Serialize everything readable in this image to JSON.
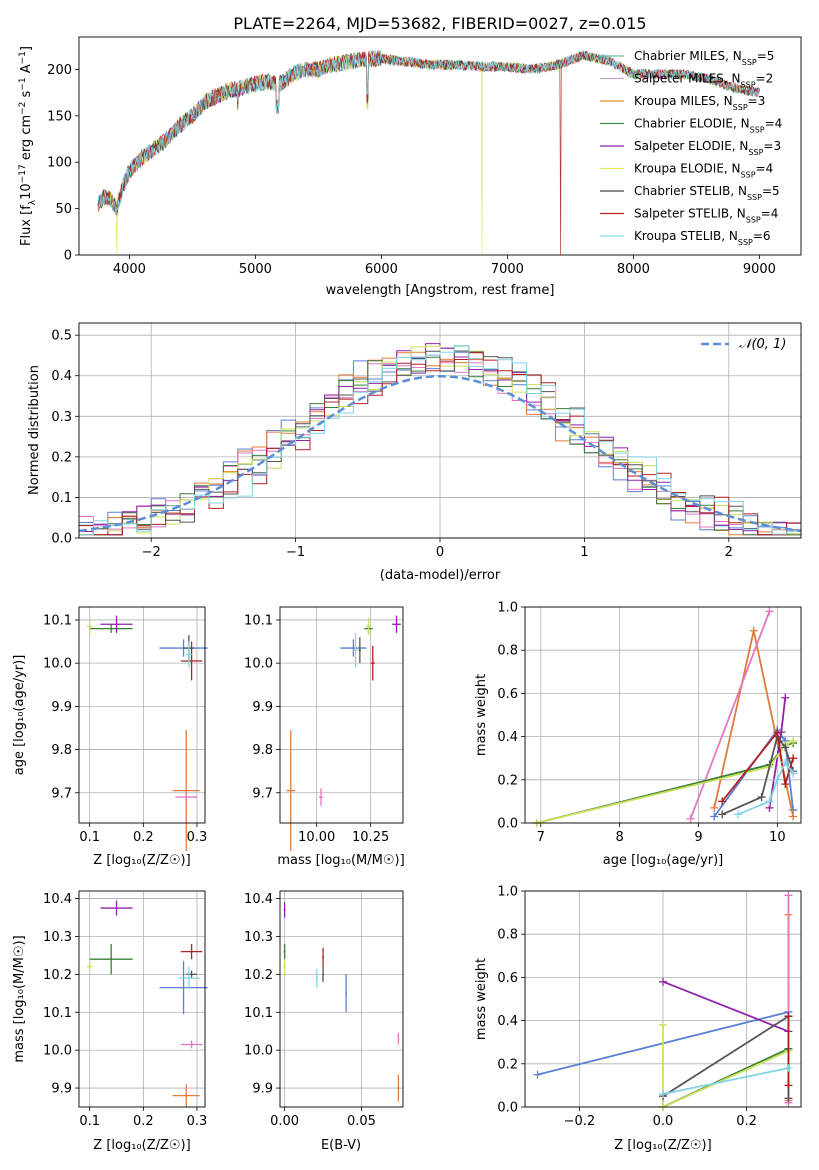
{
  "colors": {
    "series": [
      "#66c2a5",
      "#c2a5cf",
      "#e08a2c",
      "#4a8a4a",
      "#8e24aa",
      "#e6e65a",
      "#444444",
      "#b22222",
      "#80deea"
    ],
    "gauss": "#5b8fd6",
    "hist": [
      "#5b7fd6",
      "#e07b39",
      "#e377c2",
      "#3a7d3a",
      "#8e24aa",
      "#c8e05a",
      "#555555",
      "#b22222",
      "#80d4e6"
    ]
  },
  "chart_data": [
    {
      "type": "line",
      "title": "PLATE=2264, MJD=53682, FIBERID=0027, z=0.015",
      "xlabel": "wavelength [Angstrom, rest frame]",
      "ylabel": "Flux [f",
      "ylabel_parts": {
        "a": "Flux [f",
        "sub1": "λ",
        "b": "10",
        "sup1": "−17",
        "c": " erg cm",
        "sup2": "−2",
        "d": " s",
        "sup3": "−1",
        "e": " A",
        "sup4": "−1",
        "f": "]"
      },
      "xlim": [
        3600,
        9330
      ],
      "ylim": [
        0,
        235
      ],
      "xticks": [
        4000,
        5000,
        6000,
        7000,
        8000,
        9000
      ],
      "yticks": [
        0,
        50,
        100,
        150,
        200
      ],
      "legend_position": "right",
      "legend": [
        {
          "name": "Chabrier MILES, N",
          "sub": "SSP",
          "n": "=5"
        },
        {
          "name": "Salpeter MILES, N",
          "sub": "SSP",
          "n": "=2"
        },
        {
          "name": "Kroupa MILES, N",
          "sub": "SSP",
          "n": "=3"
        },
        {
          "name": "Chabrier ELODIE, N",
          "sub": "SSP",
          "n": "=4"
        },
        {
          "name": "Salpeter ELODIE, N",
          "sub": "SSP",
          "n": "=3"
        },
        {
          "name": "Kroupa ELODIE, N",
          "sub": "SSP",
          "n": "=4"
        },
        {
          "name": "Chabrier STELIB, N",
          "sub": "SSP",
          "n": "=5"
        },
        {
          "name": "Salpeter STELIB, N",
          "sub": "SSP",
          "n": "=4"
        },
        {
          "name": "Kroupa STELIB, N",
          "sub": "SSP",
          "n": "=6"
        }
      ],
      "spectrum_anchors": {
        "x": [
          3750,
          3800,
          3850,
          3900,
          3950,
          4000,
          4100,
          4200,
          4300,
          4400,
          4500,
          4600,
          4700,
          4800,
          4900,
          5000,
          5100,
          5200,
          5300,
          5400,
          5500,
          5600,
          5800,
          6000,
          6200,
          6400,
          6600,
          6800,
          7000,
          7200,
          7400,
          7600,
          7800,
          8000,
          8200,
          8400,
          8600,
          8800,
          9000
        ],
        "y": [
          55,
          62,
          60,
          50,
          75,
          90,
          105,
          115,
          125,
          140,
          150,
          165,
          172,
          178,
          180,
          185,
          187,
          185,
          195,
          200,
          200,
          205,
          210,
          212,
          208,
          205,
          205,
          203,
          203,
          200,
          205,
          215,
          210,
          195,
          195,
          195,
          190,
          180,
          175
        ]
      },
      "dips": [
        {
          "x": 3900,
          "y": 0,
          "series": 5
        },
        {
          "x": 6800,
          "y": 0,
          "series": 5
        },
        {
          "x": 7420,
          "y": 0,
          "series": 7
        }
      ]
    },
    {
      "type": "histogram",
      "xlabel": "(data-model)/error",
      "ylabel": "Normed distribution",
      "xlim": [
        -2.5,
        2.5
      ],
      "ylim": [
        0,
        0.53
      ],
      "xticks": [
        -2,
        -1,
        0,
        1,
        2
      ],
      "yticks": [
        0.0,
        0.1,
        0.2,
        0.3,
        0.4,
        0.5
      ],
      "grid": true,
      "legend": [
        {
          "name": "𝒩(0, 1)",
          "style": "dashed"
        }
      ],
      "legend_position": "top-right",
      "gauss": {
        "mu": 0,
        "sigma": 1
      },
      "bin_width": 0.1
    },
    {
      "type": "scatter",
      "xlabel": "Z [log₁₀(Z/Z☉)]",
      "ylabel": "age  [log₁₀(age/yr)]",
      "xlim": [
        0.08,
        0.315
      ],
      "ylim": [
        9.63,
        10.13
      ],
      "xticks": [
        0.1,
        0.2,
        0.3
      ],
      "yticks": [
        9.7,
        9.8,
        9.9,
        10.0,
        10.1
      ],
      "points": [
        {
          "x": 0.275,
          "y": 10.035,
          "xerr": 0.045,
          "yerr": 0.02,
          "series": 0
        },
        {
          "x": 0.28,
          "y": 9.705,
          "xerr": 0.025,
          "yerr": 0.14,
          "series": 1
        },
        {
          "x": 0.28,
          "y": 9.69,
          "xerr": 0.02,
          "yerr": 0.01,
          "series": 2
        },
        {
          "x": 0.14,
          "y": 10.08,
          "xerr": 0.04,
          "yerr": 0.01,
          "series": 3
        },
        {
          "x": 0.15,
          "y": 10.09,
          "xerr": 0.03,
          "yerr": 0.02,
          "series": 4
        },
        {
          "x": 0.1,
          "y": 10.085,
          "xerr": 0.005,
          "yerr": 0.02,
          "series": 5
        },
        {
          "x": 0.285,
          "y": 10.035,
          "xerr": 0.01,
          "yerr": 0.03,
          "series": 6
        },
        {
          "x": 0.29,
          "y": 10.005,
          "xerr": 0.02,
          "yerr": 0.045,
          "series": 7
        },
        {
          "x": 0.285,
          "y": 10.02,
          "xerr": 0.005,
          "yerr": 0.03,
          "series": 8
        }
      ]
    },
    {
      "type": "scatter",
      "xlabel": "mass [log₁₀(M/M☉)]",
      "ylabel": "",
      "xlim": [
        9.83,
        10.4
      ],
      "ylim": [
        9.63,
        10.13
      ],
      "xticks": [
        10.0,
        10.25
      ],
      "xticklabels": [
        "10.00",
        "10.25"
      ],
      "yticks": [
        9.7,
        9.8,
        9.9,
        10.0,
        10.1
      ],
      "points": [
        {
          "x": 10.17,
          "y": 10.035,
          "xerr": 0.06,
          "yerr": 0.02,
          "series": 0
        },
        {
          "x": 9.88,
          "y": 9.705,
          "xerr": 0.02,
          "yerr": 0.14,
          "series": 1
        },
        {
          "x": 10.02,
          "y": 9.69,
          "xerr": 0.01,
          "yerr": 0.02,
          "series": 2
        },
        {
          "x": 10.24,
          "y": 10.08,
          "xerr": 0.02,
          "yerr": 0.01,
          "series": 3
        },
        {
          "x": 10.37,
          "y": 10.09,
          "xerr": 0.02,
          "yerr": 0.02,
          "series": 4
        },
        {
          "x": 10.24,
          "y": 10.085,
          "xerr": 0.01,
          "yerr": 0.02,
          "series": 5
        },
        {
          "x": 10.2,
          "y": 10.03,
          "xerr": 0.005,
          "yerr": 0.03,
          "series": 6
        },
        {
          "x": 10.26,
          "y": 10.0,
          "xerr": 0.01,
          "yerr": 0.04,
          "series": 7
        },
        {
          "x": 10.18,
          "y": 10.03,
          "xerr": 0.01,
          "yerr": 0.04,
          "series": 8
        }
      ]
    },
    {
      "type": "line",
      "xlabel": "age  [log₁₀(age/yr)]",
      "ylabel": "mass weight",
      "xlim": [
        6.8,
        10.3
      ],
      "ylim": [
        0,
        1.0
      ],
      "xticks": [
        7,
        8,
        9,
        10
      ],
      "yticks": [
        0.0,
        0.2,
        0.4,
        0.6,
        0.8,
        1.0
      ],
      "grid": true,
      "series": [
        {
          "x": [
            9.2,
            10.0,
            10.1,
            10.2
          ],
          "y": [
            0.03,
            0.43,
            0.38,
            0.06
          ],
          "color": 0
        },
        {
          "x": [
            9.2,
            9.7,
            10.2
          ],
          "y": [
            0.07,
            0.89,
            0.03
          ],
          "color": 1
        },
        {
          "x": [
            8.9,
            9.9
          ],
          "y": [
            0.02,
            0.98
          ],
          "color": 2
        },
        {
          "x": [
            6.95,
            9.9,
            10.1,
            10.2
          ],
          "y": [
            0.0,
            0.27,
            0.36,
            0.37
          ],
          "color": 3
        },
        {
          "x": [
            9.9,
            10.05,
            10.1
          ],
          "y": [
            0.07,
            0.42,
            0.58
          ],
          "color": 4
        },
        {
          "x": [
            6.95,
            9.9,
            10.1,
            10.2
          ],
          "y": [
            0.0,
            0.26,
            0.36,
            0.38
          ],
          "color": 5
        },
        {
          "x": [
            9.3,
            9.8,
            10.0,
            10.1,
            10.2
          ],
          "y": [
            0.04,
            0.12,
            0.4,
            0.35,
            0.24
          ],
          "color": 6
        },
        {
          "x": [
            9.3,
            10.0,
            10.1,
            10.2
          ],
          "y": [
            0.1,
            0.42,
            0.18,
            0.3
          ],
          "color": 7
        },
        {
          "x": [
            9.5,
            9.9,
            10.0,
            10.1,
            10.2
          ],
          "y": [
            0.04,
            0.1,
            0.2,
            0.28,
            0.23
          ],
          "color": 8
        }
      ]
    },
    {
      "type": "scatter",
      "xlabel": "Z [log₁₀(Z/Z☉)]",
      "ylabel": "mass [log₁₀(M/M☉)]",
      "xlim": [
        0.08,
        0.315
      ],
      "ylim": [
        9.85,
        10.42
      ],
      "xticks": [
        0.1,
        0.2,
        0.3
      ],
      "yticks": [
        9.9,
        10.0,
        10.1,
        10.2,
        10.3,
        10.4
      ],
      "points": [
        {
          "x": 0.275,
          "y": 10.165,
          "xerr": 0.045,
          "yerr": 0.07,
          "series": 0
        },
        {
          "x": 0.28,
          "y": 9.88,
          "xerr": 0.025,
          "yerr": 0.03,
          "series": 1
        },
        {
          "x": 0.29,
          "y": 10.015,
          "xerr": 0.02,
          "yerr": 0.01,
          "series": 2
        },
        {
          "x": 0.14,
          "y": 10.24,
          "xerr": 0.04,
          "yerr": 0.04,
          "series": 3
        },
        {
          "x": 0.15,
          "y": 10.375,
          "xerr": 0.03,
          "yerr": 0.02,
          "series": 4
        },
        {
          "x": 0.1,
          "y": 10.22,
          "xerr": 0.005,
          "yerr": 0.01,
          "series": 5
        },
        {
          "x": 0.29,
          "y": 10.2,
          "xerr": 0.01,
          "yerr": 0.01,
          "series": 6
        },
        {
          "x": 0.29,
          "y": 10.26,
          "xerr": 0.02,
          "yerr": 0.02,
          "series": 7
        },
        {
          "x": 0.285,
          "y": 10.19,
          "xerr": 0.02,
          "yerr": 0.03,
          "series": 8
        }
      ]
    },
    {
      "type": "scatter",
      "xlabel": "E(B-V)",
      "ylabel": "",
      "xlim": [
        -0.003,
        0.077
      ],
      "ylim": [
        9.85,
        10.42
      ],
      "xticks": [
        0.0,
        0.05
      ],
      "xticklabels": [
        "0.00",
        "0.05"
      ],
      "yticks": [
        9.9,
        10.0,
        10.1,
        10.2,
        10.3,
        10.4
      ],
      "points": [
        {
          "x": 0.04,
          "y": 10.15,
          "xerr": 0,
          "yerr": 0.05,
          "series": 0
        },
        {
          "x": 0.074,
          "y": 9.9,
          "xerr": 0,
          "yerr": 0.035,
          "series": 1
        },
        {
          "x": 0.074,
          "y": 10.03,
          "xerr": 0,
          "yerr": 0.015,
          "series": 2
        },
        {
          "x": 0.0,
          "y": 10.26,
          "xerr": 0,
          "yerr": 0.02,
          "series": 3
        },
        {
          "x": 0.0,
          "y": 10.37,
          "xerr": 0,
          "yerr": 0.02,
          "series": 4
        },
        {
          "x": 0.0,
          "y": 10.22,
          "xerr": 0,
          "yerr": 0.02,
          "series": 5
        },
        {
          "x": 0.025,
          "y": 10.2,
          "xerr": 0,
          "yerr": 0.02,
          "series": 6
        },
        {
          "x": 0.025,
          "y": 10.245,
          "xerr": 0,
          "yerr": 0.025,
          "series": 7
        },
        {
          "x": 0.021,
          "y": 10.19,
          "xerr": 0,
          "yerr": 0.025,
          "series": 8
        }
      ]
    },
    {
      "type": "line",
      "xlabel": "Z [log₁₀(Z/Z☉)]",
      "ylabel": "mass weight",
      "xlim": [
        -0.33,
        0.33
      ],
      "ylim": [
        0,
        1.0
      ],
      "xticks": [
        -0.2,
        0.0,
        0.2
      ],
      "xticklabels": [
        "−0.2",
        "0.0",
        "0.2"
      ],
      "yticks": [
        0.0,
        0.2,
        0.4,
        0.6,
        0.8,
        1.0
      ],
      "grid": true,
      "series": [
        {
          "x": [
            -0.3,
            0.3
          ],
          "y": [
            0.15,
            0.44
          ],
          "color": 0
        },
        {
          "x": [
            0.3,
            0.3
          ],
          "y": [
            0.03,
            0.89
          ],
          "color": 1
        },
        {
          "x": [
            0.3,
            0.3
          ],
          "y": [
            0.02,
            0.98
          ],
          "color": 2
        },
        {
          "x": [
            0.0,
            0.3
          ],
          "y": [
            0.0,
            0.27
          ],
          "color": 3
        },
        {
          "x": [
            0.0,
            0.3,
            0.3
          ],
          "y": [
            0.58,
            0.35,
            0.42
          ],
          "color": 4
        },
        {
          "x": [
            0.0,
            0.0,
            0.3
          ],
          "y": [
            0.38,
            0.0,
            0.26
          ],
          "color": 5
        },
        {
          "x": [
            0.0,
            0.3,
            0.3
          ],
          "y": [
            0.05,
            0.42,
            0.04
          ],
          "color": 6
        },
        {
          "x": [
            0.3,
            0.3
          ],
          "y": [
            0.1,
            0.42
          ],
          "color": 7
        },
        {
          "x": [
            0.0,
            0.3
          ],
          "y": [
            0.06,
            0.18
          ],
          "color": 8
        }
      ]
    }
  ]
}
